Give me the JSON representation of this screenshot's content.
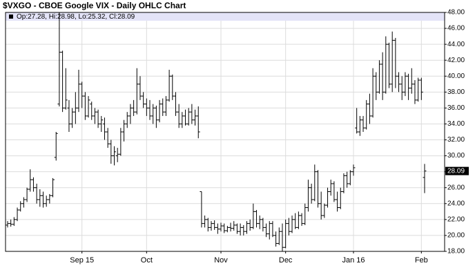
{
  "chart_data": {
    "type": "ohlc",
    "title": "$VXGO - CBOE Google VIX - Daily OHLC Chart",
    "info": "Op:27.28, Hi:28.98, Lo:25.32, Cl:28.09",
    "last_price": 28.09,
    "color": "#000000",
    "grid": true,
    "categories": [
      null,
      null,
      null,
      null,
      null,
      null,
      null,
      null,
      null,
      null,
      null,
      null,
      null,
      null,
      null,
      null,
      null,
      null,
      null,
      null,
      null,
      null,
      null,
      "Sep 15",
      null,
      null,
      null,
      null,
      null,
      null,
      null,
      null,
      null,
      null,
      null,
      null,
      null,
      null,
      null,
      null,
      null,
      null,
      null,
      "Oct",
      null,
      null,
      null,
      null,
      null,
      null,
      null,
      null,
      null,
      null,
      null,
      null,
      null,
      null,
      null,
      null,
      null,
      null,
      null,
      null,
      null,
      null,
      "Nov",
      null,
      null,
      null,
      null,
      null,
      null,
      null,
      null,
      null,
      null,
      null,
      null,
      null,
      null,
      null,
      null,
      null,
      null,
      null,
      "Dec",
      null,
      null,
      null,
      null,
      null,
      null,
      null,
      null,
      null,
      null,
      null,
      null,
      null,
      null,
      null,
      null,
      null,
      null,
      null,
      null,
      "Jan 16",
      null,
      null,
      null,
      null,
      null,
      null,
      null,
      null,
      null,
      null,
      null,
      null,
      null,
      null,
      null,
      null,
      null,
      null,
      null,
      null,
      "Feb",
      null
    ],
    "ohlc": [
      [
        21.3,
        21.8,
        21.0,
        21.5
      ],
      [
        21.5,
        22.0,
        21.1,
        21.4
      ],
      [
        21.4,
        22.3,
        21.2,
        22.0
      ],
      [
        22.0,
        23.5,
        21.8,
        23.2
      ],
      [
        23.2,
        24.3,
        23.0,
        24.0
      ],
      [
        24.0,
        24.8,
        23.5,
        24.5
      ],
      [
        24.5,
        26.0,
        24.2,
        25.8
      ],
      [
        25.8,
        28.3,
        25.5,
        27.0
      ],
      [
        27.0,
        27.3,
        25.5,
        26.0
      ],
      [
        26.0,
        26.5,
        24.0,
        24.5
      ],
      [
        24.5,
        25.8,
        23.6,
        25.0
      ],
      [
        25.0,
        25.5,
        23.5,
        24.0
      ],
      [
        24.0,
        25.0,
        23.6,
        24.5
      ],
      [
        24.5,
        25.2,
        24.0,
        25.0
      ],
      [
        25.0,
        27.2,
        24.8,
        27.0
      ],
      [
        29.8,
        33.0,
        29.4,
        32.8
      ],
      [
        36.5,
        48.0,
        36.2,
        43.0
      ],
      [
        43.0,
        43.2,
        35.5,
        36.0
      ],
      [
        36.0,
        41.0,
        35.8,
        37.0
      ],
      [
        36.0,
        37.0,
        33.0,
        34.0
      ],
      [
        34.0,
        36.0,
        33.5,
        35.5
      ],
      [
        35.5,
        38.0,
        34.0,
        36.0
      ],
      [
        36.0,
        40.8,
        35.5,
        39.0
      ],
      [
        39.0,
        39.3,
        36.0,
        37.5
      ],
      [
        37.5,
        38.0,
        34.5,
        35.0
      ],
      [
        35.0,
        37.5,
        34.8,
        37.0
      ],
      [
        36.5,
        36.8,
        34.5,
        35.0
      ],
      [
        35.0,
        36.0,
        34.0,
        35.5
      ],
      [
        35.5,
        35.8,
        33.5,
        34.0
      ],
      [
        34.0,
        35.0,
        33.0,
        34.5
      ],
      [
        34.0,
        34.8,
        32.0,
        33.0
      ],
      [
        33.0,
        33.5,
        31.0,
        31.5
      ],
      [
        31.5,
        32.0,
        29.0,
        30.0
      ],
      [
        30.0,
        31.2,
        28.8,
        30.5
      ],
      [
        30.0,
        31.0,
        29.2,
        30.2
      ],
      [
        30.2,
        33.5,
        30.0,
        33.0
      ],
      [
        33.0,
        34.5,
        31.8,
        34.0
      ],
      [
        34.0,
        35.5,
        33.5,
        35.0
      ],
      [
        35.0,
        36.5,
        34.0,
        36.0
      ],
      [
        36.0,
        37.0,
        35.0,
        35.5
      ],
      [
        35.5,
        41.0,
        35.2,
        39.0
      ],
      [
        39.0,
        40.0,
        37.0,
        37.5
      ],
      [
        37.5,
        38.0,
        36.0,
        36.5
      ],
      [
        36.5,
        37.2,
        35.0,
        36.0
      ],
      [
        36.0,
        37.0,
        34.5,
        35.0
      ],
      [
        35.0,
        36.5,
        34.0,
        36.0
      ],
      [
        36.0,
        36.3,
        33.5,
        34.5
      ],
      [
        34.5,
        37.0,
        34.2,
        36.5
      ],
      [
        36.5,
        37.2,
        35.0,
        35.5
      ],
      [
        35.5,
        37.5,
        35.0,
        37.0
      ],
      [
        37.0,
        40.8,
        36.8,
        40.0
      ],
      [
        40.0,
        40.2,
        37.0,
        37.5
      ],
      [
        37.5,
        38.0,
        35.0,
        35.5
      ],
      [
        35.5,
        36.5,
        33.5,
        34.0
      ],
      [
        34.0,
        35.5,
        33.5,
        35.0
      ],
      [
        35.0,
        35.8,
        33.8,
        34.0
      ],
      [
        34.0,
        36.0,
        33.8,
        35.5
      ],
      [
        35.5,
        36.5,
        34.0,
        34.5
      ],
      [
        34.5,
        35.8,
        33.8,
        35.0
      ],
      [
        35.0,
        36.2,
        32.2,
        33.0
      ],
      [
        25.5,
        25.5,
        21.0,
        21.5
      ],
      [
        21.5,
        22.5,
        21.0,
        22.0
      ],
      [
        22.0,
        22.2,
        20.5,
        21.0
      ],
      [
        21.0,
        21.8,
        20.6,
        21.5
      ],
      [
        21.5,
        21.9,
        20.7,
        21.0
      ],
      [
        21.0,
        21.5,
        20.2,
        20.8
      ],
      [
        20.8,
        21.6,
        20.5,
        21.2
      ],
      [
        21.2,
        21.5,
        20.3,
        20.6
      ],
      [
        20.6,
        21.2,
        20.4,
        21.0
      ],
      [
        21.0,
        21.6,
        20.5,
        20.9
      ],
      [
        20.9,
        21.8,
        20.6,
        21.3
      ],
      [
        21.3,
        21.5,
        20.2,
        20.5
      ],
      [
        20.5,
        21.5,
        20.0,
        21.0
      ],
      [
        21.0,
        21.3,
        20.0,
        20.5
      ],
      [
        20.5,
        21.8,
        20.2,
        21.5
      ],
      [
        21.5,
        22.0,
        20.6,
        21.0
      ],
      [
        21.0,
        24.0,
        20.8,
        23.0
      ],
      [
        23.0,
        23.2,
        21.0,
        21.5
      ],
      [
        21.5,
        22.5,
        20.8,
        22.0
      ],
      [
        22.0,
        22.2,
        20.5,
        21.0
      ],
      [
        21.0,
        21.5,
        19.8,
        20.2
      ],
      [
        20.2,
        21.8,
        19.5,
        21.5
      ],
      [
        21.5,
        21.8,
        19.8,
        20.0
      ],
      [
        20.0,
        20.5,
        18.6,
        19.0
      ],
      [
        19.0,
        21.0,
        18.8,
        20.5
      ],
      [
        20.5,
        21.5,
        18.0,
        18.5
      ],
      [
        18.5,
        22.0,
        18.4,
        21.5
      ],
      [
        21.5,
        22.2,
        20.0,
        20.5
      ],
      [
        20.5,
        22.5,
        20.3,
        22.0
      ],
      [
        22.0,
        22.8,
        20.8,
        21.0
      ],
      [
        21.0,
        23.0,
        20.8,
        22.5
      ],
      [
        22.5,
        22.8,
        21.2,
        21.5
      ],
      [
        21.5,
        24.0,
        21.3,
        23.5
      ],
      [
        23.5,
        27.0,
        23.0,
        26.0
      ],
      [
        26.0,
        26.5,
        24.0,
        24.5
      ],
      [
        24.5,
        28.9,
        24.3,
        28.0
      ],
      [
        28.0,
        28.2,
        23.5,
        24.0
      ],
      [
        24.0,
        25.5,
        22.0,
        22.5
      ],
      [
        22.5,
        24.0,
        22.2,
        23.8
      ],
      [
        23.8,
        26.0,
        23.5,
        25.5
      ],
      [
        25.5,
        27.0,
        25.0,
        26.5
      ],
      [
        26.5,
        26.8,
        24.2,
        24.5
      ],
      [
        24.5,
        25.5,
        23.0,
        23.5
      ],
      [
        23.5,
        26.0,
        23.3,
        25.5
      ],
      [
        25.5,
        27.8,
        25.3,
        27.5
      ],
      [
        27.5,
        28.0,
        26.0,
        26.5
      ],
      [
        26.5,
        28.2,
        26.3,
        28.0
      ],
      [
        28.0,
        28.9,
        27.5,
        28.5
      ],
      [
        33.5,
        36.0,
        32.8,
        33.0
      ],
      [
        33.0,
        35.0,
        32.5,
        34.5
      ],
      [
        34.5,
        35.0,
        33.0,
        33.5
      ],
      [
        33.5,
        37.0,
        33.3,
        36.5
      ],
      [
        36.5,
        37.8,
        34.0,
        35.0
      ],
      [
        35.0,
        41.0,
        34.8,
        40.0
      ],
      [
        40.0,
        40.5,
        37.0,
        38.0
      ],
      [
        38.0,
        42.0,
        37.8,
        41.5
      ],
      [
        41.5,
        43.0,
        37.0,
        38.0
      ],
      [
        38.0,
        45.0,
        37.8,
        44.0
      ],
      [
        44.0,
        44.2,
        38.5,
        39.0
      ],
      [
        39.0,
        45.6,
        38.0,
        44.5
      ],
      [
        44.5,
        44.8,
        38.5,
        40.0
      ],
      [
        40.0,
        40.5,
        38.0,
        39.0
      ],
      [
        39.0,
        40.0,
        37.0,
        38.0
      ],
      [
        38.0,
        40.5,
        37.5,
        40.0
      ],
      [
        40.0,
        40.3,
        37.0,
        38.5
      ],
      [
        38.5,
        41.0,
        37.8,
        39.0
      ],
      [
        39.0,
        39.5,
        36.5,
        37.0
      ],
      [
        37.0,
        39.8,
        36.8,
        39.5
      ],
      [
        39.5,
        39.8,
        37.0,
        38.0
      ],
      [
        27.28,
        28.98,
        25.32,
        28.09
      ]
    ],
    "ylim": [
      18,
      48
    ],
    "yticks": [
      {
        "value": 18,
        "label": "18.00"
      },
      {
        "value": 20,
        "label": "20.00"
      },
      {
        "value": 22,
        "label": "22.00"
      },
      {
        "value": 24,
        "label": "24.00"
      },
      {
        "value": 26,
        "label": "26.00"
      },
      {
        "value": 28,
        "label": "28.00"
      },
      {
        "value": 30,
        "label": "30.00"
      },
      {
        "value": 32,
        "label": "32.00"
      },
      {
        "value": 34,
        "label": "34.00"
      },
      {
        "value": 36,
        "label": "36.00"
      },
      {
        "value": 38,
        "label": "38.00"
      },
      {
        "value": 40,
        "label": "40.00"
      },
      {
        "value": 42,
        "label": "42.00"
      },
      {
        "value": 44,
        "label": "44.00"
      },
      {
        "value": 46,
        "label": "46.00"
      },
      {
        "value": 48,
        "label": "48.00"
      }
    ]
  }
}
